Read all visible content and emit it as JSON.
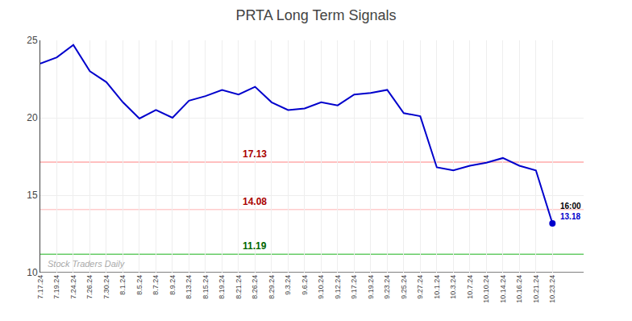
{
  "chart_data": {
    "type": "line",
    "title": "PRTA Long Term Signals",
    "categories": [
      "7.17.24",
      "7.19.24",
      "7.24.24",
      "7.26.24",
      "7.30.24",
      "8.1.24",
      "8.5.24",
      "8.7.24",
      "8.9.24",
      "8.13.24",
      "8.15.24",
      "8.19.24",
      "8.21.24",
      "8.26.24",
      "8.29.24",
      "9.3.24",
      "9.6.24",
      "9.10.24",
      "9.12.24",
      "9.17.24",
      "9.19.24",
      "9.23.24",
      "9.25.24",
      "9.27.24",
      "10.1.24",
      "10.3.24",
      "10.7.24",
      "10.10.24",
      "10.14.24",
      "10.16.24",
      "10.21.24",
      "10.23.24"
    ],
    "values": [
      23.5,
      23.9,
      24.7,
      23.0,
      22.3,
      21.0,
      19.95,
      20.5,
      20.0,
      21.1,
      21.4,
      21.8,
      21.5,
      22.0,
      21.0,
      20.5,
      20.6,
      21.0,
      20.8,
      21.5,
      21.6,
      21.8,
      20.3,
      20.1,
      16.8,
      16.6,
      16.9,
      17.1,
      17.4,
      16.9,
      16.6,
      13.18
    ],
    "color": "#0000cc",
    "ylim": [
      10,
      25
    ],
    "yticks": [
      10,
      15,
      20,
      25
    ],
    "grid": true,
    "reference_lines": [
      {
        "value": 17.13,
        "color": "#ffaaaa",
        "label": "17.13",
        "label_color": "#aa0000"
      },
      {
        "value": 14.08,
        "color": "#ffcccc",
        "label": "14.08",
        "label_color": "#aa0000"
      },
      {
        "value": 11.19,
        "color": "#66cc66",
        "label": "11.19",
        "label_color": "#006600"
      },
      {
        "value": 10,
        "color": "#555555"
      }
    ],
    "last_point": {
      "color": "#0000cc",
      "time_label": "16:00",
      "value_label": "13.18"
    },
    "watermark": {
      "text": "Stock Traders Daily",
      "color": "#aaaaaa"
    }
  }
}
